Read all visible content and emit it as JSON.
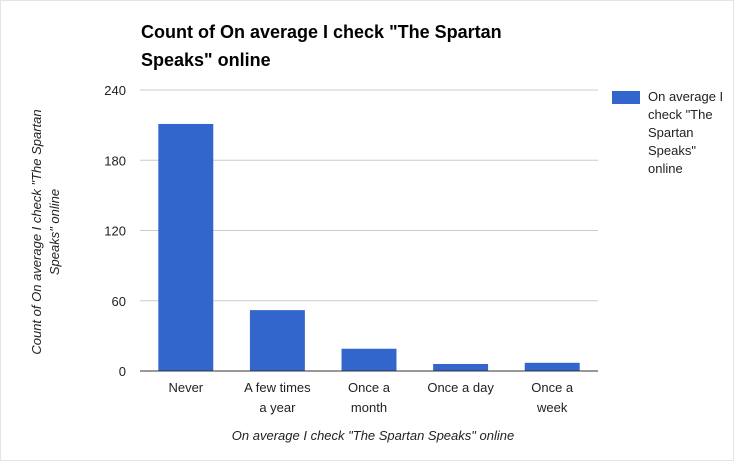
{
  "chart_data": {
    "type": "bar",
    "title": "Count of On average I check \"The Spartan Speaks\" online",
    "xlabel": "On average I check \"The Spartan Speaks\" online",
    "ylabel": "Count of On average I check \"The Spartan Speaks\" online",
    "categories": [
      "Never",
      "A few times a year",
      "Once a month",
      "Once a day",
      "Once a week"
    ],
    "category_label_lines": [
      [
        "Never"
      ],
      [
        "A few times",
        "a year"
      ],
      [
        "Once a",
        "month"
      ],
      [
        "Once a day"
      ],
      [
        "Once a",
        "week"
      ]
    ],
    "series": [
      {
        "name": "On average I check \"The Spartan Speaks\" online",
        "values": [
          211,
          52,
          19,
          6,
          7
        ],
        "color": "#3366cc"
      }
    ],
    "ylim": [
      0,
      240
    ],
    "yticks": [
      0,
      60,
      120,
      180,
      240
    ],
    "grid": true,
    "legend_position": "right",
    "gridline_color": "#cccccc",
    "axis_color": "#333333"
  }
}
